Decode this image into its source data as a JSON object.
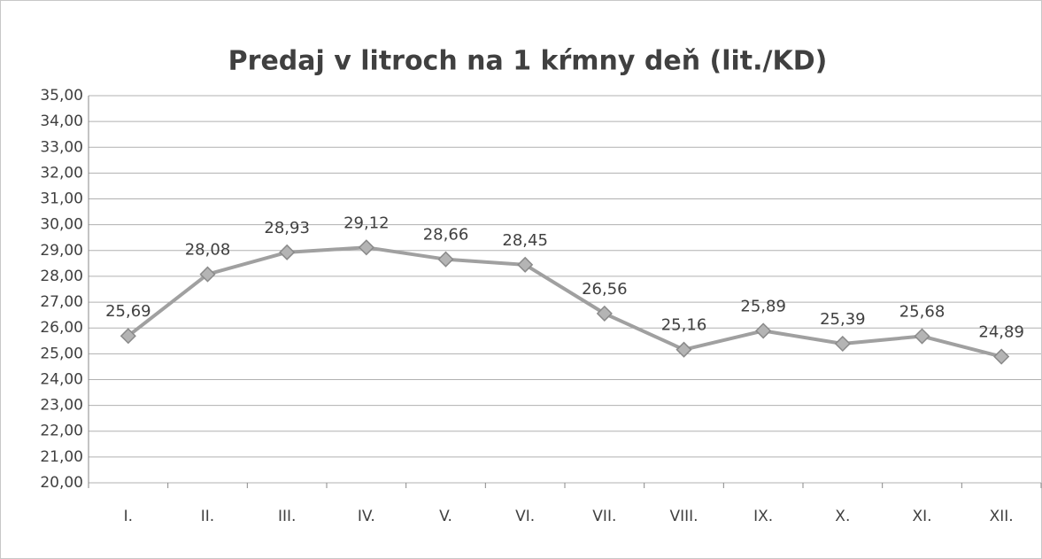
{
  "chart_data": {
    "type": "line",
    "title": "Predaj v litroch na 1 kŕmny deň (lit./KD)",
    "categories": [
      "I.",
      "II.",
      "III.",
      "IV.",
      "V.",
      "VI.",
      "VII.",
      "VIII.",
      "IX.",
      "X.",
      "XI.",
      "XII."
    ],
    "values": [
      25.69,
      28.08,
      28.93,
      29.12,
      28.66,
      28.45,
      26.56,
      25.16,
      25.89,
      25.39,
      25.68,
      24.89
    ],
    "value_labels": [
      "25,69",
      "28,08",
      "28,93",
      "29,12",
      "28,66",
      "28,45",
      "26,56",
      "25,16",
      "25,89",
      "25,39",
      "25,68",
      "24,89"
    ],
    "color": "#a0a0a0",
    "ylim": [
      20,
      35
    ],
    "yticks": [
      {
        "value": 20,
        "label": "20,00"
      },
      {
        "value": 21,
        "label": "21,00"
      },
      {
        "value": 22,
        "label": "22,00"
      },
      {
        "value": 23,
        "label": "23,00"
      },
      {
        "value": 24,
        "label": "24,00"
      },
      {
        "value": 25,
        "label": "25,00"
      },
      {
        "value": 26,
        "label": "26,00"
      },
      {
        "value": 27,
        "label": "27,00"
      },
      {
        "value": 28,
        "label": "28,00"
      },
      {
        "value": 29,
        "label": "29,00"
      },
      {
        "value": 30,
        "label": "30,00"
      },
      {
        "value": 31,
        "label": "31,00"
      },
      {
        "value": 32,
        "label": "32,00"
      },
      {
        "value": 33,
        "label": "33,00"
      },
      {
        "value": 34,
        "label": "34,00"
      },
      {
        "value": 35,
        "label": "35,00"
      }
    ],
    "grid": true
  }
}
